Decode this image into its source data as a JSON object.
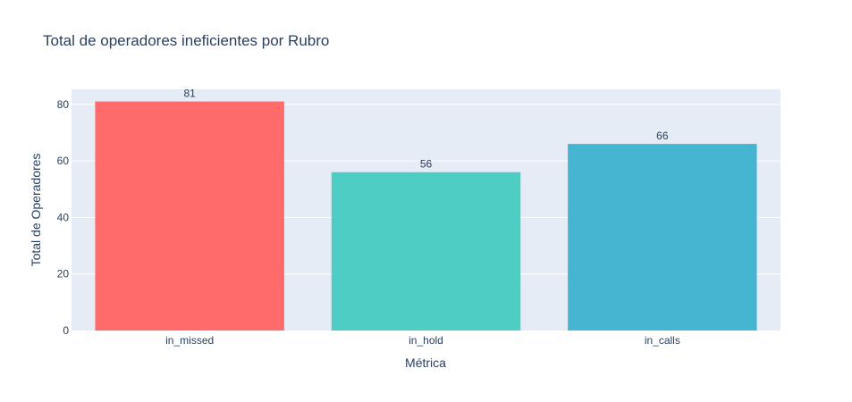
{
  "chart_data": {
    "type": "bar",
    "title": "Total de operadores ineficientes por Rubro",
    "xlabel": "Métrica",
    "ylabel": "Total de Operadores",
    "categories": [
      "in_missed",
      "in_hold",
      "in_calls"
    ],
    "values": [
      81,
      56,
      66
    ],
    "data_labels": [
      "81",
      "56",
      "66"
    ],
    "colors": [
      "#ff6a6a",
      "#4ecdc4",
      "#45b5d1"
    ],
    "ylim": [
      0,
      85.3
    ],
    "yticks": [
      0,
      20,
      40,
      60,
      80
    ],
    "ytick_labels": [
      "0",
      "20",
      "40",
      "60",
      "80"
    ],
    "grid": true,
    "plot_background": "#e5ecf6"
  }
}
